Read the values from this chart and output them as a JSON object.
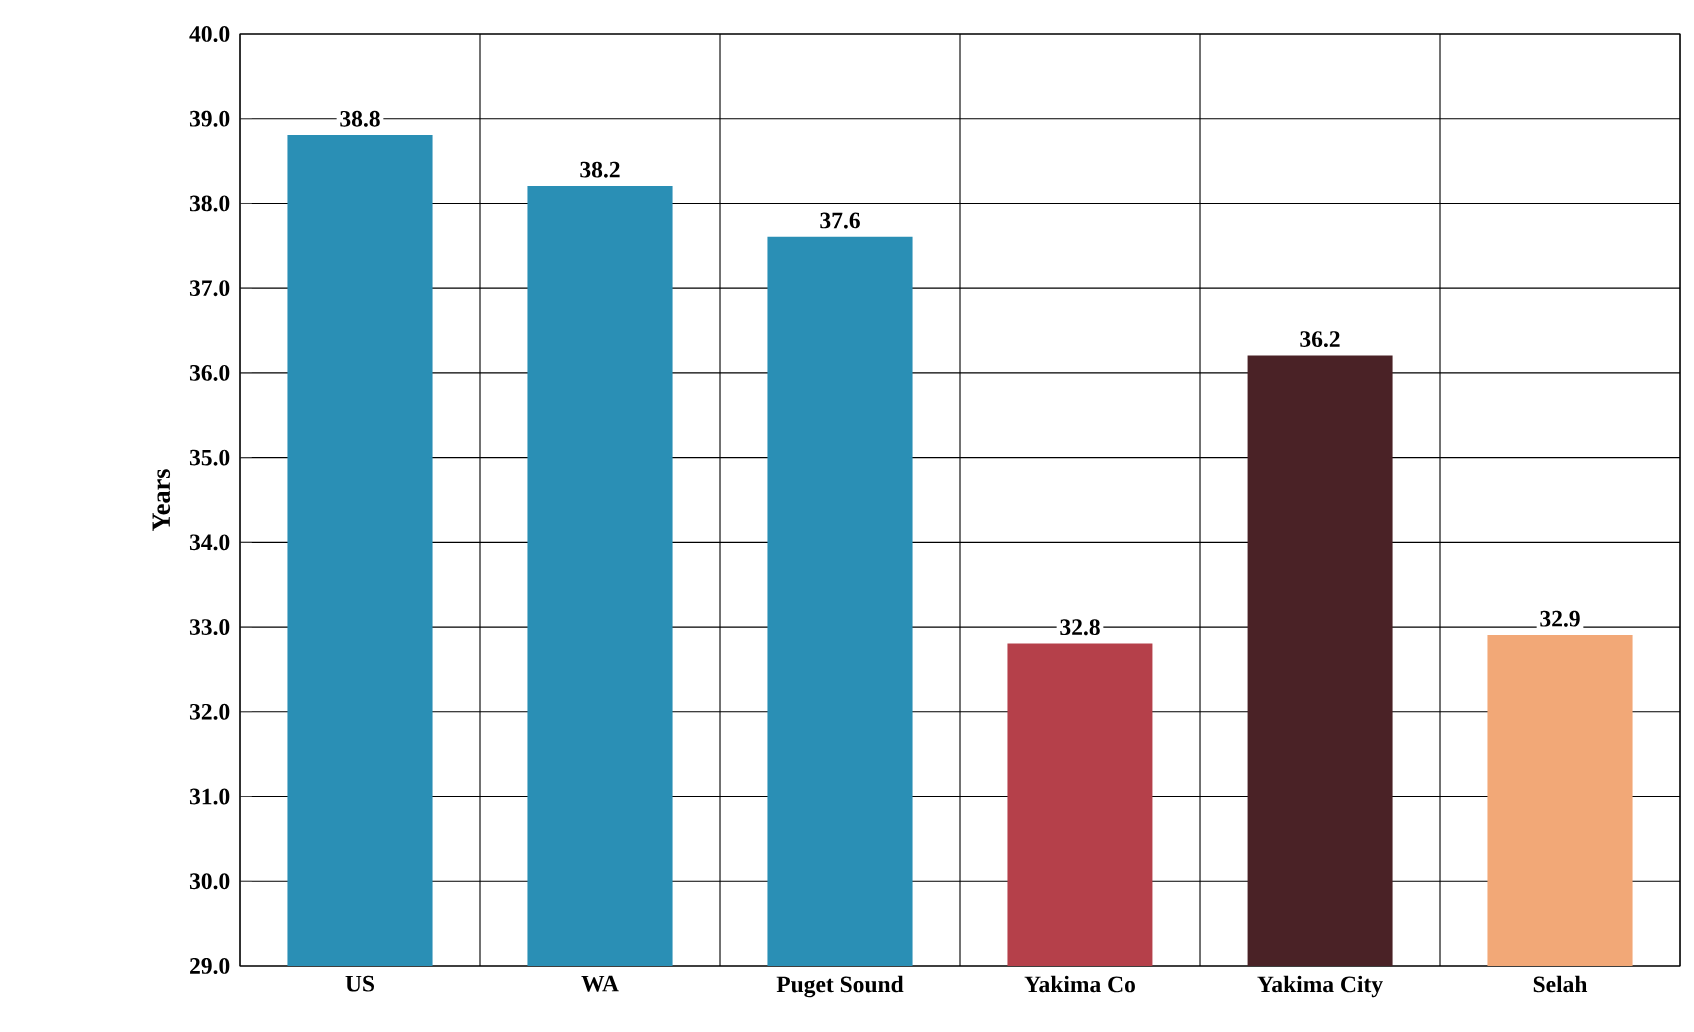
{
  "chart_data": {
    "type": "bar",
    "ylabel": "Years",
    "categories": [
      "US",
      "WA",
      "Puget Sound",
      "Yakima Co",
      "Yakima City",
      "Selah"
    ],
    "values": [
      38.8,
      38.2,
      37.6,
      32.8,
      36.2,
      32.9
    ],
    "colors": [
      "#2a8fb5",
      "#2a8fb5",
      "#2a8fb5",
      "#b5404a",
      "#4a2226",
      "#f2a877"
    ],
    "ylim": [
      29,
      40
    ],
    "yticks": [
      {
        "value": 29,
        "label": "29.0"
      },
      {
        "value": 30,
        "label": "30.0"
      },
      {
        "value": 31,
        "label": "31.0"
      },
      {
        "value": 32,
        "label": "32.0"
      },
      {
        "value": 33,
        "label": "33.0"
      },
      {
        "value": 34,
        "label": "34.0"
      },
      {
        "value": 35,
        "label": "35.0"
      },
      {
        "value": 36,
        "label": "36.0"
      },
      {
        "value": 37,
        "label": "37.0"
      },
      {
        "value": 38,
        "label": "38.0"
      },
      {
        "value": 39,
        "label": "39.0"
      },
      {
        "value": 40,
        "label": "40.0"
      }
    ],
    "data_labels": true,
    "grid": true
  }
}
